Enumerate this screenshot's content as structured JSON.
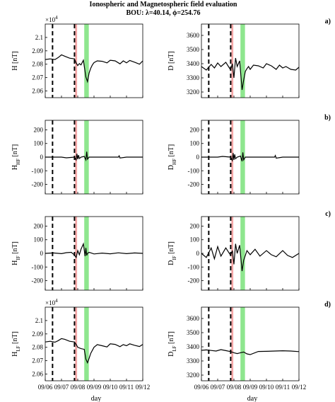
{
  "title_line1": "Ionospheric and Magnetospheric field evaluation",
  "title_line2": "BOU: λ=40.14, ϕ=254.76",
  "xlabel": "day",
  "xtick_labels": [
    "09/06",
    "09/07",
    "09/08",
    "09/09",
    "09/10",
    "09/11",
    "09/12"
  ],
  "panel_letters": [
    "a)",
    "b)",
    "c)",
    "d)"
  ],
  "exponent_base": "×10",
  "exponent_power": "4",
  "colors": {
    "storm_onset_band": "#f4a6a6",
    "recovery_band": "#8ee68e",
    "line": "#000000",
    "event_line": "#000000"
  },
  "chart_data": [
    {
      "id": "H",
      "type": "line",
      "ylabel_main": "H",
      "ylabel_sub": "",
      "ylabel_unit": " [nT]",
      "exponent": true,
      "x": [
        0,
        0.3,
        0.6,
        0.8,
        1.0,
        1.2,
        1.5,
        1.8,
        1.9,
        2.0,
        2.1,
        2.2,
        2.35,
        2.5,
        2.6,
        2.7,
        2.8,
        2.9,
        3.0,
        3.2,
        3.5,
        3.8,
        4.0,
        4.3,
        4.6,
        4.8,
        5.0,
        5.2,
        5.5,
        5.8,
        6.0
      ],
      "y": [
        20835,
        20840,
        20835,
        20850,
        20870,
        20860,
        20845,
        20840,
        20810,
        20790,
        20805,
        20795,
        20830,
        20705,
        20670,
        20735,
        20770,
        20795,
        20812,
        20825,
        20822,
        20810,
        20830,
        20825,
        20803,
        20825,
        20810,
        20828,
        20815,
        20800,
        20825
      ],
      "ylim": [
        20550.0,
        21100.0
      ],
      "yticks": [
        2.06,
        2.07,
        2.08,
        2.09,
        2.1
      ],
      "ytick_labels": [
        "2.06",
        "2.07",
        "2.08",
        "2.09",
        "2.1"
      ],
      "letter_index": 0
    },
    {
      "id": "D",
      "type": "line",
      "ylabel_main": "D",
      "ylabel_sub": "",
      "ylabel_unit": " [nT]",
      "exponent": false,
      "x": [
        0,
        0.3,
        0.6,
        0.8,
        1.0,
        1.2,
        1.5,
        1.8,
        1.9,
        2.0,
        2.1,
        2.2,
        2.35,
        2.5,
        2.6,
        2.7,
        2.8,
        2.9,
        3.0,
        3.2,
        3.5,
        3.8,
        4.0,
        4.3,
        4.6,
        4.8,
        5.0,
        5.2,
        5.5,
        5.8,
        6.0
      ],
      "y": [
        3380,
        3355,
        3395,
        3370,
        3405,
        3380,
        3410,
        3355,
        3400,
        3300,
        3440,
        3380,
        3420,
        3215,
        3285,
        3345,
        3365,
        3380,
        3360,
        3390,
        3385,
        3370,
        3400,
        3385,
        3360,
        3390,
        3370,
        3380,
        3360,
        3355,
        3375
      ],
      "ylim": [
        3160,
        3680
      ],
      "yticks": [
        3200,
        3300,
        3400,
        3500,
        3600
      ],
      "ytick_labels": [
        "3200",
        "3300",
        "3400",
        "3500",
        "3600"
      ],
      "letter_index": -1
    },
    {
      "id": "HHF",
      "type": "line",
      "ylabel_main": "H",
      "ylabel_sub": "HF",
      "ylabel_unit": " [nT]",
      "exponent": false,
      "x": [
        0,
        0.5,
        1.0,
        1.3,
        1.8,
        1.9,
        1.95,
        2.0,
        2.05,
        2.1,
        2.2,
        2.4,
        2.5,
        2.55,
        2.6,
        2.7,
        3.0,
        3.5,
        4.0,
        4.5,
        4.55,
        4.6,
        5.0,
        6.0
      ],
      "y": [
        0,
        0,
        0,
        -5,
        0,
        -20,
        25,
        -15,
        15,
        -10,
        0,
        5,
        -20,
        40,
        -15,
        0,
        0,
        0,
        0,
        0,
        10,
        -6,
        0,
        0
      ],
      "ylim": [
        -270,
        270
      ],
      "yticks": [
        -200,
        -100,
        0,
        100,
        200
      ],
      "ytick_labels": [
        "-200",
        "-100",
        "0",
        "100",
        "200"
      ],
      "letter_index": 1
    },
    {
      "id": "DHF",
      "type": "line",
      "ylabel_main": "D",
      "ylabel_sub": "HF",
      "ylabel_unit": " [nT]",
      "exponent": false,
      "x": [
        0,
        0.5,
        1.0,
        1.3,
        1.8,
        1.9,
        1.95,
        2.0,
        2.05,
        2.1,
        2.2,
        2.4,
        2.5,
        2.55,
        2.6,
        2.7,
        3.0,
        3.5,
        4.0,
        4.5,
        4.55,
        4.6,
        5.0,
        6.0
      ],
      "y": [
        0,
        0,
        0,
        5,
        0,
        -25,
        30,
        -20,
        20,
        -12,
        0,
        8,
        -30,
        35,
        -20,
        0,
        0,
        0,
        0,
        0,
        12,
        -8,
        0,
        0
      ],
      "ylim": [
        -270,
        270
      ],
      "yticks": [
        -200,
        -100,
        0,
        100,
        200
      ],
      "ytick_labels": [
        "-200",
        "-100",
        "0",
        "100",
        "200"
      ],
      "letter_index": -1
    },
    {
      "id": "HIF",
      "type": "line",
      "ylabel_main": "H",
      "ylabel_sub": "IF",
      "ylabel_unit": " [nT]",
      "exponent": false,
      "x": [
        0,
        0.5,
        1.0,
        1.3,
        1.6,
        1.8,
        1.9,
        2.0,
        2.1,
        2.2,
        2.35,
        2.45,
        2.5,
        2.55,
        2.6,
        2.7,
        3.0,
        3.5,
        4.0,
        4.5,
        5.0,
        5.5,
        6.0
      ],
      "y": [
        0,
        3,
        -2,
        5,
        8,
        -12,
        -30,
        20,
        -10,
        30,
        70,
        -20,
        40,
        -15,
        0,
        8,
        -4,
        2,
        -3,
        4,
        -2,
        3,
        0
      ],
      "ylim": [
        -270,
        270
      ],
      "yticks": [
        -200,
        -100,
        0,
        100,
        200
      ],
      "ytick_labels": [
        "-200",
        "-100",
        "0",
        "100",
        "200"
      ],
      "letter_index": 2
    },
    {
      "id": "DIF",
      "type": "line",
      "ylabel_main": "D",
      "ylabel_sub": "IF",
      "ylabel_unit": " [nT]",
      "exponent": false,
      "x": [
        0,
        0.3,
        0.6,
        0.8,
        1.0,
        1.2,
        1.5,
        1.8,
        1.9,
        2.0,
        2.1,
        2.2,
        2.35,
        2.5,
        2.6,
        2.7,
        2.8,
        3.0,
        3.3,
        3.6,
        4.0,
        4.3,
        4.6,
        5.0,
        5.3,
        5.6,
        6.0
      ],
      "y": [
        0,
        -30,
        40,
        -40,
        50,
        -20,
        40,
        -15,
        20,
        -80,
        70,
        0,
        60,
        -130,
        -50,
        -15,
        20,
        -10,
        30,
        -20,
        20,
        -10,
        -25,
        20,
        -15,
        -30,
        0
      ],
      "ylim": [
        -270,
        270
      ],
      "yticks": [
        -200,
        -100,
        0,
        100,
        200
      ],
      "ytick_labels": [
        "-200",
        "-100",
        "0",
        "100",
        "200"
      ],
      "letter_index": -1
    },
    {
      "id": "HLF",
      "type": "line",
      "ylabel_main": "H",
      "ylabel_sub": "LF",
      "ylabel_unit": " [nT]",
      "exponent": true,
      "x": [
        0,
        0.3,
        0.6,
        0.8,
        1.0,
        1.2,
        1.5,
        1.8,
        1.9,
        2.0,
        2.2,
        2.4,
        2.5,
        2.6,
        2.7,
        2.8,
        3.0,
        3.2,
        3.5,
        3.8,
        4.0,
        4.3,
        4.6,
        4.8,
        5.0,
        5.2,
        5.5,
        5.8,
        6.0
      ],
      "y": [
        20840,
        20845,
        20838,
        20850,
        20865,
        20860,
        20845,
        20840,
        20822,
        20800,
        20790,
        20785,
        20712,
        20685,
        20718,
        20755,
        20800,
        20820,
        20812,
        20803,
        20826,
        20822,
        20805,
        20820,
        20812,
        20826,
        20815,
        20806,
        20822
      ],
      "ylim": [
        20550.0,
        21100.0
      ],
      "yticks": [
        2.06,
        2.07,
        2.08,
        2.09,
        2.1
      ],
      "ytick_labels": [
        "2.06",
        "2.07",
        "2.08",
        "2.09",
        "2.1"
      ],
      "letter_index": 3
    },
    {
      "id": "DLF",
      "type": "line",
      "ylabel_main": "D",
      "ylabel_sub": "LF",
      "ylabel_unit": " [nT]",
      "exponent": false,
      "x": [
        0,
        0.3,
        0.6,
        0.9,
        1.2,
        1.5,
        1.8,
        2.0,
        2.2,
        2.4,
        2.6,
        2.8,
        3.0,
        3.5,
        4.0,
        4.5,
        5.0,
        5.5,
        6.0
      ],
      "y": [
        3375,
        3378,
        3374,
        3370,
        3380,
        3373,
        3366,
        3358,
        3352,
        3358,
        3363,
        3350,
        3345,
        3367,
        3368,
        3370,
        3372,
        3370,
        3366
      ],
      "ylim": [
        3160,
        3680
      ],
      "yticks": [
        3200,
        3300,
        3400,
        3500,
        3600
      ],
      "ytick_labels": [
        "3200",
        "3300",
        "3400",
        "3500",
        "3600"
      ],
      "letter_index": -1
    }
  ],
  "events": {
    "dashed_lines_x": [
      0.45,
      1.8
    ],
    "storm_band_x": [
      1.84,
      1.96
    ],
    "recovery_band_x": [
      2.4,
      2.68
    ]
  }
}
